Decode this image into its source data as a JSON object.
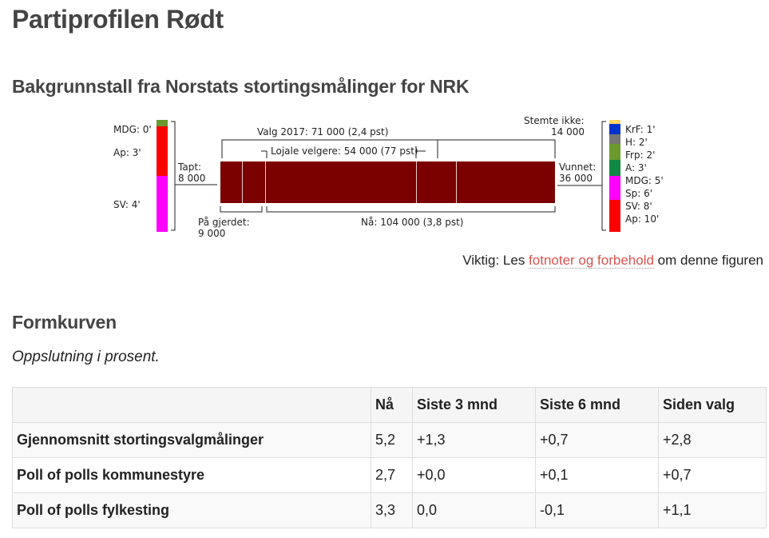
{
  "page": {
    "title": "Partiprofilen Rødt",
    "section_background": "Bakgrunnstall fra Norstats stortingsmålinger for NRK",
    "section_form": "Formkurven",
    "subtitle": "Oppslutning i prosent."
  },
  "figure": {
    "valg2017": "Valg 2017: 71 000 (2,4 pst)",
    "lojale": "Lojale velgere: 54 000 (77 pst)",
    "stemte_ikke_1": "Stemte ikke:",
    "stemte_ikke_2": "14 000",
    "tapt_1": "Tapt:",
    "tapt_2": "8 000",
    "vunnet_1": "Vunnet:",
    "vunnet_2": "36 000",
    "gjerdet_1": "På gjerdet:",
    "gjerdet_2": "9 000",
    "naa": "Nå: 104 000 (3,8 pst)",
    "left_labels": [
      "MDG: 0'",
      "Ap: 3'",
      "SV: 4'"
    ],
    "right_labels": [
      "KrF: 1'",
      "H: 2'",
      "Frp: 2'",
      "A: 3'",
      "MDG: 5'",
      "Sp: 6'",
      "SV: 8'",
      "Ap: 10'"
    ],
    "colors": {
      "bar": "#7b0000",
      "mdg": "#6a9a2e",
      "ap": "#ff0000",
      "sv": "#ff00ff",
      "krf": "#ffd966",
      "h": "#0033cc",
      "frp": "#777777",
      "sp": "#6a9a2e",
      "a": "#118844"
    }
  },
  "note": {
    "prefix": "Viktig: Les ",
    "link": "fotnoter og forbehold",
    "suffix": " om denne figuren"
  },
  "table": {
    "headers": [
      "",
      "Nå",
      "Siste 3 mnd",
      "Siste 6 mnd",
      "Siden valg"
    ],
    "rows": [
      [
        "Gjennomsnitt stortingsvalgmålinger",
        "5,2",
        "+1,3",
        "+0,7",
        "+2,8"
      ],
      [
        "Poll of polls kommunestyre",
        "2,7",
        "+0,0",
        "+0,1",
        "+0,7"
      ],
      [
        "Poll of polls fylkesting",
        "3,3",
        "0,0",
        "-0,1",
        "+1,1"
      ]
    ]
  }
}
